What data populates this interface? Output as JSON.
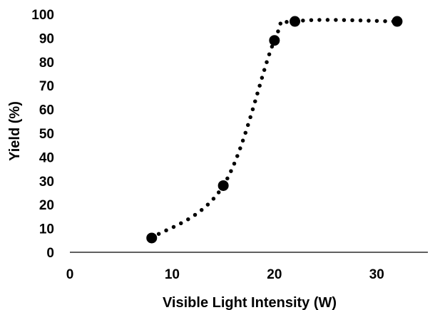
{
  "chart_data": {
    "type": "scatter",
    "xlabel": "Visible Light Intensity (W)",
    "ylabel": "Yield (%)",
    "xlim": [
      0,
      35
    ],
    "ylim": [
      0,
      100
    ],
    "x_ticks": [
      "0",
      "10",
      "20",
      "30"
    ],
    "x_tick_values": [
      0,
      10,
      20,
      30
    ],
    "y_ticks": [
      "0",
      "10",
      "20",
      "30",
      "40",
      "50",
      "60",
      "70",
      "80",
      "90",
      "100"
    ],
    "y_tick_values": [
      0,
      10,
      20,
      30,
      40,
      50,
      60,
      70,
      80,
      90,
      100
    ],
    "grid": false,
    "legend": "none",
    "marker_color": "#000000",
    "trendline": "dotted smooth",
    "series": [
      {
        "x": [
          8,
          15,
          20,
          22,
          32
        ],
        "y": [
          6,
          28,
          89,
          97,
          97
        ]
      }
    ]
  }
}
